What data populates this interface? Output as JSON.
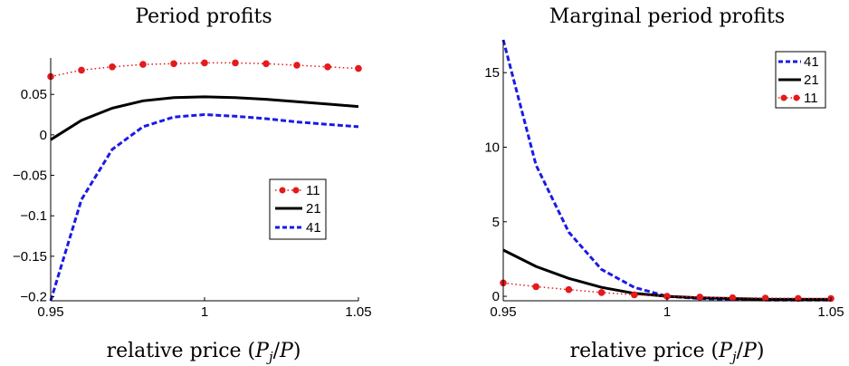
{
  "chart_data": [
    {
      "type": "line",
      "title": "Period profits",
      "xlabel": "relative price (P_j/P)",
      "ylabel": "",
      "xlim": [
        0.95,
        1.05
      ],
      "ylim": [
        -0.205,
        0.095
      ],
      "x": [
        0.95,
        0.96,
        0.97,
        0.98,
        0.99,
        1.0,
        1.01,
        1.02,
        1.03,
        1.04,
        1.05
      ],
      "xticks": [
        0.95,
        1,
        1.05
      ],
      "xtick_labels": [
        "0.95",
        "1",
        "1.05"
      ],
      "yticks": [
        0.05,
        0,
        -0.05,
        -0.1,
        -0.15,
        -0.2
      ],
      "ytick_labels": [
        "0.05",
        "0",
        "−0.05",
        "−0.1",
        "−0.15",
        "−0.2"
      ],
      "legend_position": "right",
      "series": [
        {
          "name": "11",
          "style": "dotted-markers",
          "color": "#e41a1c",
          "values": [
            0.072,
            0.08,
            0.084,
            0.087,
            0.088,
            0.089,
            0.089,
            0.088,
            0.086,
            0.084,
            0.082
          ]
        },
        {
          "name": "21",
          "style": "solid",
          "color": "#000000",
          "values": [
            -0.006,
            0.018,
            0.033,
            0.042,
            0.046,
            0.047,
            0.046,
            0.044,
            0.041,
            0.038,
            0.035
          ]
        },
        {
          "name": "41",
          "style": "dashed",
          "color": "#1a1ae6",
          "values": [
            -0.205,
            -0.08,
            -0.018,
            0.01,
            0.022,
            0.025,
            0.023,
            0.02,
            0.016,
            0.013,
            0.01
          ]
        }
      ]
    },
    {
      "type": "line",
      "title": "Marginal period profits",
      "xlabel": "relative price (P_j/P)",
      "ylabel": "",
      "xlim": [
        0.95,
        1.05
      ],
      "ylim": [
        -0.3,
        17.2
      ],
      "x": [
        0.95,
        0.96,
        0.97,
        0.98,
        0.99,
        1.0,
        1.01,
        1.02,
        1.03,
        1.04,
        1.05
      ],
      "xticks": [
        0.95,
        1,
        1.05
      ],
      "xtick_labels": [
        "0.95",
        "1",
        "1.05"
      ],
      "yticks": [
        0,
        5,
        10,
        15
      ],
      "ytick_labels": [
        "0",
        "5",
        "10",
        "15"
      ],
      "legend_position": "top-right",
      "series": [
        {
          "name": "41",
          "style": "dashed",
          "color": "#1a1ae6",
          "values": [
            17.2,
            8.8,
            4.3,
            1.8,
            0.6,
            0.0,
            -0.15,
            -0.2,
            -0.25,
            -0.25,
            -0.25
          ]
        },
        {
          "name": "21",
          "style": "solid",
          "color": "#000000",
          "values": [
            3.1,
            2.0,
            1.2,
            0.6,
            0.2,
            0.0,
            -0.1,
            -0.15,
            -0.2,
            -0.2,
            -0.2
          ]
        },
        {
          "name": "11",
          "style": "dotted-markers",
          "color": "#e41a1c",
          "values": [
            0.9,
            0.65,
            0.45,
            0.25,
            0.1,
            0.0,
            -0.05,
            -0.1,
            -0.12,
            -0.14,
            -0.15
          ]
        }
      ]
    }
  ]
}
